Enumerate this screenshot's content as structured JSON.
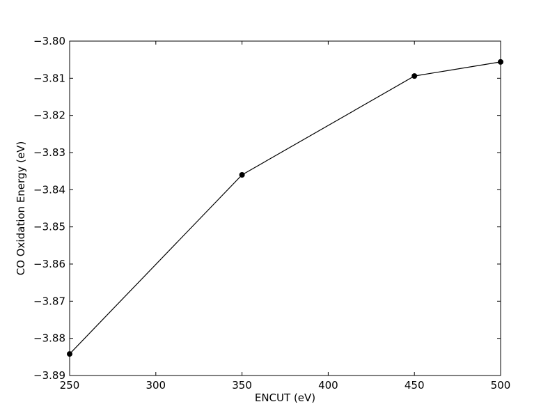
{
  "chart_data": {
    "type": "line",
    "title": "",
    "xlabel": "ENCUT (eV)",
    "ylabel": "CO Oxidation Energy (eV)",
    "xlim": [
      250,
      500
    ],
    "ylim": [
      -3.89,
      -3.8
    ],
    "xticks": [
      250,
      300,
      350,
      400,
      450,
      500
    ],
    "xtick_labels": [
      "250",
      "300",
      "350",
      "400",
      "450",
      "500"
    ],
    "yticks": [
      -3.8,
      -3.81,
      -3.82,
      -3.83,
      -3.84,
      -3.85,
      -3.86,
      -3.87,
      -3.88,
      -3.89
    ],
    "ytick_labels": [
      "−3.80",
      "−3.81",
      "−3.82",
      "−3.83",
      "−3.84",
      "−3.85",
      "−3.86",
      "−3.87",
      "−3.88",
      "−3.89"
    ],
    "grid": false,
    "series": [
      {
        "x": [
          250,
          350,
          450,
          500
        ],
        "y": [
          -3.8842,
          -3.836,
          -3.8094,
          -3.8056
        ],
        "color": "#000000",
        "marker": "circle"
      }
    ]
  }
}
